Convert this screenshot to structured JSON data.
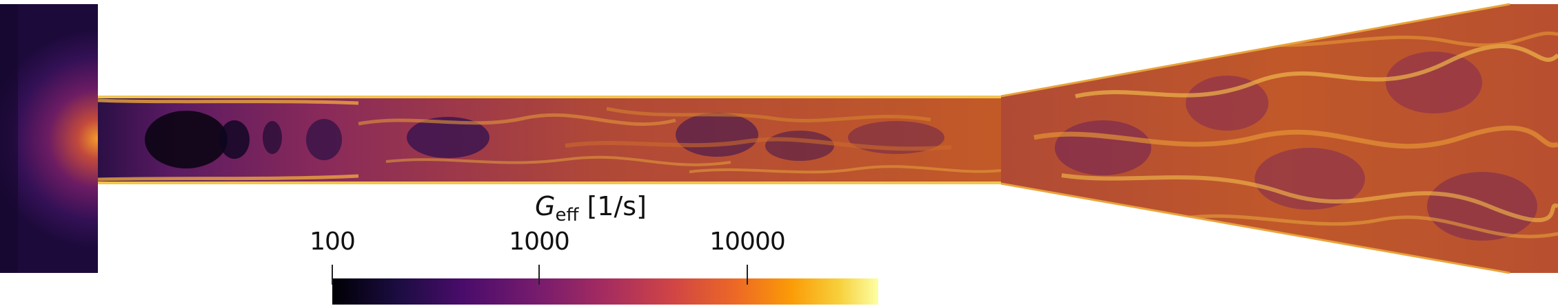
{
  "colorbar": {
    "title_symbol": "G",
    "title_subscript": "eff",
    "title_unit": "[1/s]",
    "ticks": [
      "100",
      "1000",
      "10000"
    ],
    "colormap": [
      "#000004",
      "#1b0c41",
      "#4a0c6b",
      "#781c6d",
      "#a52c60",
      "#cf4446",
      "#ed6925",
      "#fb9b06",
      "#f7d13d",
      "#fcffa4"
    ]
  },
  "field_palette": {
    "dark": "#3a1052",
    "mid_dark": "#6b1d5e",
    "mid": "#9e2f52",
    "orange": "#cc5a22",
    "bright": "#e8a030",
    "highlight": "#f5d36a"
  }
}
